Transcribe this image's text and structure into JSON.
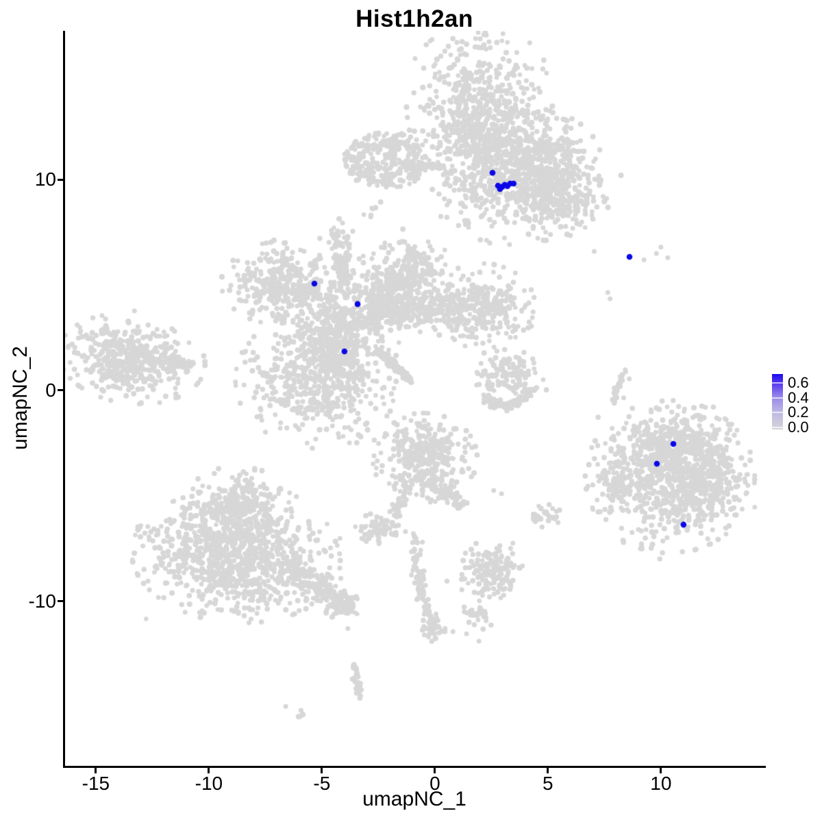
{
  "chart_data": {
    "type": "scatter",
    "title": "Hist1h2an",
    "xlabel": "umapNC_1",
    "ylabel": "umapNC_2",
    "xlim": [
      -16.36,
      14.55
    ],
    "ylim": [
      -17.82,
      17.07
    ],
    "grid": false,
    "legend_position": "right",
    "xticks": [
      {
        "v": -15,
        "label": "-15"
      },
      {
        "v": -10,
        "label": "-10"
      },
      {
        "v": -5,
        "label": "-5"
      },
      {
        "v": 0,
        "label": "0"
      },
      {
        "v": 5,
        "label": "5"
      },
      {
        "v": 10,
        "label": "10"
      }
    ],
    "yticks": [
      {
        "v": 10,
        "label": "10"
      },
      {
        "v": 0,
        "label": "0"
      },
      {
        "v": -10,
        "label": "-10"
      }
    ],
    "colors": {
      "point_low": "#d7d7d7",
      "point_high": "#0b07e6",
      "axis": "#000000",
      "background": "#ffffff"
    },
    "legend": {
      "ticks": [
        {
          "v": 0.6,
          "label": "0.6"
        },
        {
          "v": 0.4,
          "label": "0.4"
        },
        {
          "v": 0.2,
          "label": "0.2"
        },
        {
          "v": 0.0,
          "label": "0.0"
        }
      ],
      "low": "#d7d7d7",
      "high": "#0b07e6"
    },
    "seed": 42,
    "blobs_format": "[cx, cy, sigma_x, sigma_y, n, rot_deg, uniform]",
    "clusters": {
      "blobs": [
        [
          1.95,
          13.7,
          1.35,
          1.5,
          480,
          0,
          0
        ],
        [
          1.7,
          11.9,
          0.8,
          0.65,
          140,
          0,
          0
        ],
        [
          -2.15,
          10.95,
          1.0,
          0.72,
          280,
          0,
          1
        ],
        [
          2.35,
          10.0,
          1.05,
          1.15,
          270,
          0,
          0
        ],
        [
          4.8,
          10.6,
          1.05,
          1.05,
          520,
          20,
          0
        ],
        [
          5.4,
          8.7,
          0.95,
          0.6,
          170,
          15,
          0
        ],
        [
          -2.8,
          8.6,
          0.18,
          0.3,
          7,
          0,
          0
        ],
        [
          -6.95,
          5.1,
          1.0,
          0.78,
          290,
          0,
          0
        ],
        [
          -4.35,
          7.1,
          0.38,
          0.42,
          45,
          0,
          0
        ],
        [
          -4.05,
          3.2,
          1.05,
          1.35,
          380,
          0,
          0
        ],
        [
          -1.05,
          5.6,
          0.78,
          0.75,
          230,
          0,
          0
        ],
        [
          2.1,
          3.9,
          0.95,
          0.85,
          280,
          0,
          0
        ],
        [
          -5.2,
          0.5,
          1.45,
          1.3,
          520,
          0,
          0
        ],
        [
          -4.55,
          2.1,
          0.6,
          0.8,
          130,
          0,
          0
        ],
        [
          -13.4,
          1.5,
          1.3,
          0.85,
          430,
          -8,
          0
        ],
        [
          3.3,
          0.7,
          0.62,
          0.5,
          120,
          0,
          0
        ],
        [
          10.4,
          -4.1,
          1.5,
          1.45,
          760,
          0,
          0
        ],
        [
          12.1,
          -4.4,
          0.7,
          0.95,
          170,
          0,
          0
        ],
        [
          10.3,
          -2.4,
          1.0,
          0.5,
          170,
          0,
          0
        ],
        [
          8.05,
          -4.4,
          0.3,
          0.55,
          55,
          0,
          0
        ],
        [
          -8.75,
          -5.6,
          1.0,
          0.8,
          280,
          0,
          0
        ],
        [
          -8.8,
          -7.9,
          1.85,
          1.25,
          950,
          -5,
          0
        ],
        [
          -3.95,
          -10.15,
          0.3,
          0.25,
          45,
          0,
          0
        ],
        [
          -0.5,
          -3.2,
          0.95,
          0.85,
          330,
          0,
          0
        ],
        [
          -2.4,
          -6.55,
          0.45,
          0.3,
          70,
          0,
          0
        ],
        [
          2.4,
          -8.6,
          0.6,
          0.58,
          150,
          0,
          0
        ],
        [
          4.9,
          -5.95,
          0.28,
          0.22,
          30,
          0,
          0
        ],
        [
          -0.1,
          -11.3,
          0.25,
          0.3,
          30,
          0,
          0
        ],
        [
          1.9,
          -10.7,
          0.3,
          0.28,
          25,
          0,
          0
        ],
        [
          -5.95,
          -15.4,
          0.12,
          0.1,
          5,
          0,
          0
        ]
      ],
      "strands_format": "[x1, y1, x2, y2, jitter, n, ctrl_x?, ctrl_y?]",
      "strands": [
        [
          -1.3,
          10.7,
          0.6,
          10.6,
          0.07,
          45
        ],
        [
          -6.15,
          4.55,
          -5.1,
          5.1,
          0.12,
          55
        ],
        [
          -4.25,
          6.55,
          -3.95,
          4.9,
          0.18,
          70
        ],
        [
          -3.1,
          4.1,
          -1.7,
          5.1,
          0.38,
          130
        ],
        [
          -2.9,
          3.55,
          0.9,
          4.0,
          0.42,
          260
        ],
        [
          -2.55,
          1.9,
          -1.05,
          0.45,
          0.08,
          150
        ],
        [
          -11.9,
          1.35,
          -10.75,
          1.25,
          0.12,
          45
        ],
        [
          2.05,
          -0.2,
          4.4,
          0.1,
          0.1,
          95,
          3.2,
          -1.35
        ],
        [
          8.45,
          1.0,
          7.9,
          -0.6,
          0.05,
          24,
          8.0,
          0.2
        ],
        [
          -6.5,
          -8.3,
          -4.05,
          -10.2,
          0.33,
          170
        ],
        [
          -0.25,
          -4.3,
          1.25,
          -5.5,
          0.16,
          60
        ],
        [
          -1.15,
          -4.5,
          -1.8,
          -5.95,
          0.12,
          45
        ],
        [
          -0.95,
          -6.9,
          0.0,
          -11.5,
          0.13,
          80,
          -0.8,
          -9.2
        ],
        [
          -3.6,
          -13.0,
          -3.3,
          -14.6,
          0.1,
          30
        ]
      ],
      "singles": [
        [
          6.5,
          8.0
        ],
        [
          6.1,
          7.7
        ],
        [
          -11.85,
          2.6
        ],
        [
          -11.5,
          2.3
        ],
        [
          2.45,
          1.45
        ],
        [
          2.95,
          1.35
        ],
        [
          3.85,
          1.2
        ],
        [
          2.15,
          0.9
        ],
        [
          4.15,
          0.75
        ],
        [
          8.6,
          0.55
        ],
        [
          8.35,
          -0.35
        ],
        [
          7.05,
          6.6
        ],
        [
          9.25,
          6.2
        ],
        [
          9.8,
          6.5
        ],
        [
          10.0,
          6.8
        ],
        [
          10.3,
          6.3
        ],
        [
          7.65,
          4.65
        ],
        [
          7.75,
          4.35
        ],
        [
          8.8,
          -2.05
        ],
        [
          8.5,
          -5.4
        ],
        [
          9.0,
          -6.6
        ],
        [
          12.9,
          -5.9
        ],
        [
          13.0,
          -3.2
        ],
        [
          -1.3,
          -6.7
        ],
        [
          -0.95,
          -6.8
        ],
        [
          -0.85,
          -7.05
        ],
        [
          -0.55,
          -7.2
        ],
        [
          2.6,
          -4.75
        ],
        [
          2.95,
          -4.9
        ],
        [
          2.95,
          -7.85
        ],
        [
          3.35,
          -7.5
        ],
        [
          3.45,
          -7.25
        ],
        [
          0.45,
          -11.3
        ],
        [
          0.8,
          -11.45
        ],
        [
          1.4,
          -11.55
        ],
        [
          1.95,
          -11.9
        ],
        [
          -3.85,
          -11.3
        ],
        [
          -6.6,
          -15.0
        ]
      ]
    },
    "highlight_points": [
      [
        2.55,
        10.33
      ],
      [
        2.79,
        9.72
      ],
      [
        2.97,
        9.66
      ],
      [
        3.09,
        9.76
      ],
      [
        3.33,
        9.82
      ],
      [
        3.48,
        9.82
      ],
      [
        2.88,
        9.56
      ],
      [
        3.21,
        9.7
      ],
      [
        8.61,
        6.34
      ],
      [
        -5.33,
        5.07
      ],
      [
        -3.42,
        4.1
      ],
      [
        -4.0,
        1.85
      ],
      [
        10.55,
        -2.54
      ],
      [
        9.82,
        -3.48
      ],
      [
        11.0,
        -6.37
      ]
    ]
  }
}
